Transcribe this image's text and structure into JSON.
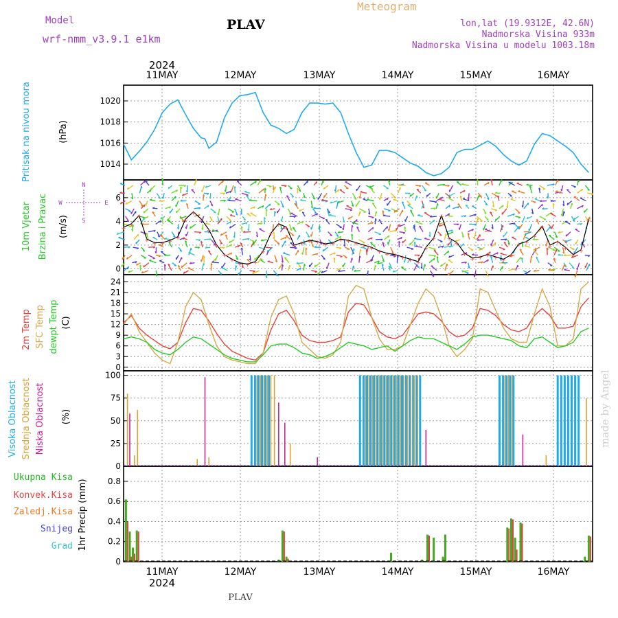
{
  "header": {
    "model_label": "Model",
    "model_name": "wrf-nmm_v3.9.1 e1km",
    "station": "PLAV",
    "meteogram": "Meteogram",
    "lonlat": "lon,lat (19.9312E, 42.6N)",
    "elevation": "Nadmorska Visina 933m",
    "model_elevation": "Nadmorska Visina u modelu 1003.18m",
    "year": "2024",
    "footer_station": "PLAV",
    "watermark": "made by Angel"
  },
  "colors": {
    "pressure": "#1eaaf0",
    "temp2m": "#e8403a",
    "sfc": "#d8a848",
    "dewpt": "#22cc22",
    "high_cloud": "#1eaaf0",
    "mid_cloud": "#e0a030",
    "low_cloud": "#cc2299",
    "total_rain": "#44aa22",
    "conv_rain": "#e84040",
    "freezing": "#f07820",
    "snow": "#4040e0",
    "hail": "#30c8c8"
  },
  "chart_data": [
    {
      "type": "line",
      "panel": "pressure",
      "ylabel_1": "Pritisak na nivou mora",
      "ylabel_2": "(hPa)",
      "x_unit": "days from 11MAY 00UTC",
      "x_categories": [
        "11MAY",
        "12MAY",
        "13MAY",
        "14MAY",
        "15MAY",
        "16MAY"
      ],
      "ylim": [
        1012.5,
        1021.5
      ],
      "yticks": [
        1014,
        1016,
        1018,
        1020
      ],
      "x": [
        -0.5,
        -0.4,
        -0.3,
        -0.2,
        -0.1,
        0.0,
        0.1,
        0.2,
        0.3,
        0.4,
        0.5,
        0.55,
        0.6,
        0.7,
        0.8,
        0.9,
        1.0,
        1.1,
        1.2,
        1.3,
        1.4,
        1.5,
        1.6,
        1.7,
        1.8,
        1.9,
        2.0,
        2.1,
        2.2,
        2.3,
        2.4,
        2.5,
        2.6,
        2.7,
        2.8,
        2.9,
        3.0,
        3.1,
        3.2,
        3.3,
        3.4,
        3.5,
        3.6,
        3.7,
        3.8,
        3.9,
        4.0,
        4.1,
        4.2,
        4.3,
        4.4,
        4.5,
        4.6,
        4.7,
        4.8,
        4.9,
        5.0,
        5.1,
        5.2,
        5.3,
        5.4,
        5.5
      ],
      "y": [
        1015.9,
        1014.4,
        1015.2,
        1016.1,
        1017.3,
        1018.9,
        1019.7,
        1020.1,
        1018.7,
        1017.4,
        1016.5,
        1016.4,
        1015.5,
        1016.1,
        1018.4,
        1019.8,
        1020.5,
        1020.6,
        1020.8,
        1018.9,
        1017.7,
        1017.4,
        1016.9,
        1017.3,
        1018.9,
        1019.8,
        1019.8,
        1019.7,
        1019.8,
        1018.9,
        1016.9,
        1015.1,
        1013.7,
        1013.9,
        1015.3,
        1015.3,
        1015.1,
        1014.6,
        1014.1,
        1013.8,
        1013.2,
        1012.9,
        1013.1,
        1013.7,
        1015.1,
        1015.4,
        1015.4,
        1015.8,
        1016.2,
        1015.7,
        1014.9,
        1014.3,
        1013.9,
        1014.3,
        1015.9,
        1016.9,
        1016.7,
        1016.2,
        1015.7,
        1015.1,
        1014.0,
        1013.2
      ]
    },
    {
      "type": "scatter",
      "panel": "wind",
      "ylabel_1": "10m Vjetar",
      "ylabel_2": "Brzina i Pravac",
      "ylabel_3": "(m/s)",
      "compass": {
        "n": "N",
        "s": "S",
        "e": "E",
        "w": "W"
      },
      "ylim": [
        -0.5,
        7.5
      ],
      "yticks": [
        0,
        2,
        4,
        6
      ],
      "x": [
        -0.5,
        -0.4,
        -0.3,
        -0.2,
        -0.1,
        0.0,
        0.1,
        0.2,
        0.3,
        0.4,
        0.5,
        0.6,
        0.7,
        0.8,
        0.9,
        1.0,
        1.1,
        1.2,
        1.3,
        1.4,
        1.5,
        1.6,
        1.7,
        1.8,
        1.9,
        2.0,
        2.1,
        2.2,
        2.3,
        2.4,
        2.5,
        2.6,
        2.7,
        2.8,
        2.9,
        3.0,
        3.1,
        3.2,
        3.3,
        3.4,
        3.5,
        3.6,
        3.7,
        3.8,
        3.9,
        4.0,
        4.1,
        4.2,
        4.3,
        4.4,
        4.5,
        4.6,
        4.7,
        4.8,
        4.9,
        5.0,
        5.1,
        5.2,
        5.3,
        5.4,
        5.5
      ],
      "speed": [
        3.5,
        3.8,
        4.5,
        2.5,
        2.2,
        2.2,
        2.4,
        2.7,
        4.2,
        4.8,
        4.2,
        3.3,
        2.0,
        1.2,
        0.8,
        0.5,
        0.4,
        0.6,
        1.5,
        3.0,
        3.8,
        3.5,
        2.0,
        2.2,
        2.4,
        2.3,
        2.1,
        2.2,
        2.5,
        2.4,
        2.2,
        2.0,
        1.8,
        1.5,
        1.3,
        1.2,
        1.0,
        0.8,
        0.6,
        1.8,
        2.6,
        4.5,
        2.6,
        2.2,
        1.3,
        0.9,
        1.0,
        1.2,
        1.0,
        0.8,
        1.2,
        2.1,
        2.3,
        2.8,
        3.6,
        2.0,
        2.3,
        1.8,
        1.2,
        1.6,
        4.2
      ]
    },
    {
      "type": "line",
      "panel": "temperature",
      "ylabel_1": "2m Temp",
      "ylabel_2": "SFC Temp",
      "ylabel_3": "dewpt Temp",
      "ylabel_4": "(C)",
      "ylim": [
        -1,
        26
      ],
      "yticks": [
        0,
        3,
        6,
        9,
        12,
        15,
        18,
        21,
        24
      ],
      "x": [
        -0.5,
        -0.4,
        -0.3,
        -0.2,
        -0.1,
        0.0,
        0.1,
        0.2,
        0.3,
        0.4,
        0.5,
        0.6,
        0.7,
        0.8,
        0.9,
        1.0,
        1.1,
        1.2,
        1.3,
        1.4,
        1.5,
        1.6,
        1.7,
        1.8,
        1.9,
        2.0,
        2.1,
        2.2,
        2.3,
        2.4,
        2.5,
        2.6,
        2.7,
        2.8,
        2.9,
        3.0,
        3.1,
        3.2,
        3.3,
        3.4,
        3.5,
        3.6,
        3.7,
        3.8,
        3.9,
        4.0,
        4.1,
        4.2,
        4.3,
        4.4,
        4.5,
        4.6,
        4.7,
        4.8,
        4.9,
        5.0,
        5.1,
        5.2,
        5.3,
        5.4,
        5.5
      ],
      "series": [
        {
          "name": "2m Temp",
          "values": [
            12.5,
            14.5,
            11.0,
            9.0,
            7.5,
            6.0,
            5.2,
            7.0,
            12.5,
            16.5,
            16.0,
            13.0,
            9.5,
            6.5,
            4.5,
            3.5,
            2.5,
            2.0,
            4.0,
            10.5,
            15.0,
            16.0,
            13.0,
            9.0,
            7.5,
            7.0,
            7.0,
            7.5,
            8.5,
            15.5,
            18.0,
            17.5,
            14.0,
            10.0,
            8.5,
            8.0,
            9.0,
            12.0,
            15.0,
            15.5,
            15.0,
            13.0,
            10.0,
            8.5,
            9.0,
            11.0,
            16.5,
            16.0,
            14.5,
            12.0,
            10.5,
            10.0,
            11.0,
            14.5,
            16.5,
            14.5,
            11.0,
            11.0,
            11.5,
            17.0,
            19.5
          ]
        },
        {
          "name": "SFC Temp",
          "values": [
            12.0,
            15.0,
            10.0,
            7.0,
            4.0,
            2.0,
            1.0,
            7.0,
            17.0,
            21.0,
            19.0,
            12.0,
            6.0,
            3.0,
            2.0,
            1.5,
            1.0,
            1.0,
            4.0,
            14.0,
            19.0,
            20.0,
            15.0,
            7.0,
            5.0,
            3.0,
            2.5,
            3.5,
            7.0,
            20.0,
            23.0,
            22.0,
            14.0,
            8.0,
            5.0,
            5.0,
            6.0,
            12.0,
            18.0,
            22.0,
            20.0,
            14.0,
            6.0,
            3.0,
            5.0,
            8.0,
            22.0,
            21.0,
            16.0,
            11.0,
            8.0,
            7.0,
            7.0,
            15.0,
            22.0,
            17.0,
            6.0,
            6.0,
            8.0,
            22.0,
            24.0
          ]
        },
        {
          "name": "dewpt Temp",
          "values": [
            8.0,
            8.5,
            8.0,
            7.0,
            5.0,
            4.0,
            3.5,
            5.0,
            7.0,
            8.5,
            8.0,
            6.5,
            5.0,
            3.5,
            2.5,
            2.0,
            1.5,
            1.5,
            3.5,
            6.0,
            6.5,
            6.5,
            5.5,
            4.0,
            3.5,
            2.5,
            3.0,
            4.0,
            5.5,
            7.0,
            6.5,
            6.0,
            5.0,
            5.5,
            6.0,
            4.5,
            6.0,
            7.5,
            8.5,
            8.0,
            8.0,
            7.0,
            6.0,
            5.0,
            6.5,
            8.5,
            9.0,
            9.0,
            8.5,
            8.0,
            7.5,
            6.0,
            5.5,
            8.0,
            8.5,
            7.0,
            5.5,
            6.0,
            7.0,
            10.0,
            11.0
          ]
        }
      ]
    },
    {
      "type": "bar",
      "panel": "clouds",
      "ylabel_1": "Visoka Oblacnost",
      "ylabel_2": "Srednja Oblacnost",
      "ylabel_3": "Niska Oblacnost",
      "ylabel_4": "(%)",
      "ylim": [
        0,
        105
      ],
      "yticks": [
        0,
        25,
        50,
        75,
        100
      ],
      "high_runs": [
        [
          1.15,
          1.4,
          100
        ],
        [
          2.55,
          3.1,
          100
        ],
        [
          3.1,
          3.35,
          100
        ],
        [
          4.35,
          4.55,
          100
        ],
        [
          5.1,
          5.4,
          100
        ]
      ],
      "mid_runs": [
        [
          1.2,
          1.45,
          100
        ],
        [
          2.6,
          3.3,
          100
        ],
        [
          4.4,
          4.55,
          100
        ],
        [
          5.45,
          5.5,
          75
        ]
      ],
      "single_bars": [
        {
          "x": -0.45,
          "series": "mid",
          "value": 80
        },
        {
          "x": -0.42,
          "series": "low",
          "value": 58
        },
        {
          "x": -0.36,
          "series": "mid",
          "value": 12
        },
        {
          "x": -0.32,
          "series": "mid",
          "value": 62
        },
        {
          "x": 0.55,
          "series": "low",
          "value": 98
        },
        {
          "x": 0.6,
          "series": "mid",
          "value": 10
        },
        {
          "x": 0.45,
          "series": "mid",
          "value": 8
        },
        {
          "x": 1.5,
          "series": "low",
          "value": 70
        },
        {
          "x": 1.58,
          "series": "low",
          "value": 48
        },
        {
          "x": 1.65,
          "series": "mid",
          "value": 25
        },
        {
          "x": 2.0,
          "series": "low",
          "value": 10
        },
        {
          "x": 3.4,
          "series": "low",
          "value": 40
        },
        {
          "x": 4.65,
          "series": "low",
          "value": 35
        },
        {
          "x": 4.95,
          "series": "mid",
          "value": 12
        }
      ]
    },
    {
      "type": "bar",
      "panel": "precip",
      "legend": [
        "Ukupna Kisa",
        "Konvek.Kisa",
        "Zaledj.Kisa",
        "Snijeg",
        "Grad"
      ],
      "ylabel": "1hr Precip (mm)",
      "ylim": [
        0,
        0.95
      ],
      "yticks": [
        0,
        0.2,
        0.4,
        0.6,
        0.8
      ],
      "x": [
        -0.47,
        -0.42,
        -0.38,
        -0.33,
        1.5,
        1.55,
        1.6,
        2.95,
        3.35,
        3.42,
        3.5,
        3.62,
        3.65,
        4.45,
        4.5,
        4.55,
        4.62,
        5.45,
        5.5
      ],
      "total": [
        0.62,
        0.3,
        0.14,
        0.31,
        0.02,
        0.31,
        0.05,
        0.09,
        0.02,
        0.27,
        0.24,
        0.05,
        0.27,
        0.34,
        0.43,
        0.24,
        0.39,
        0.05,
        0.26
      ],
      "convective": [
        0.4,
        0.05,
        0.08,
        0.3,
        0.0,
        0.3,
        0.03,
        0.0,
        0.0,
        0.26,
        0.0,
        0.03,
        0.0,
        0.33,
        0.42,
        0.12,
        0.38,
        0.0,
        0.25
      ]
    }
  ]
}
